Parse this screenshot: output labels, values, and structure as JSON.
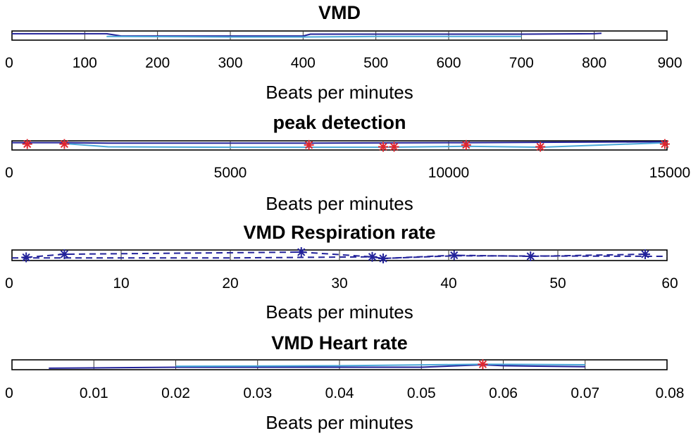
{
  "chart_data": [
    {
      "type": "line",
      "title": "VMD",
      "xlabel": "Beats per minutes",
      "xlim": [
        0,
        900
      ],
      "xticks": [
        "0",
        "100",
        "200",
        "300",
        "400",
        "500",
        "600",
        "700",
        "800",
        "900"
      ],
      "ylim": [
        -1,
        1
      ],
      "grid": true,
      "series": [
        {
          "color": "#22229a",
          "style": "solid",
          "marker": "none",
          "x": [
            0,
            130,
            150,
            400,
            410,
            700,
            800,
            810
          ],
          "y": [
            0.4,
            0.4,
            -0.1,
            -0.1,
            0.3,
            0.3,
            0.4,
            0.5
          ]
        },
        {
          "color": "#4aa8d8",
          "style": "solid",
          "marker": "none",
          "x": [
            130,
            300,
            400,
            500,
            700
          ],
          "y": [
            -0.2,
            -0.3,
            -0.3,
            -0.2,
            -0.2
          ]
        }
      ]
    },
    {
      "type": "line",
      "title": "peak detection",
      "xlabel": "Beats per minutes",
      "xlim": [
        0,
        15000
      ],
      "xticks": [
        "0",
        "5000",
        "10000",
        "15000"
      ],
      "ylim": [
        -1,
        1
      ],
      "grid": true,
      "series": [
        {
          "color": "#22229a",
          "style": "solid",
          "marker": "none",
          "x": [
            0,
            1200,
            2200,
            6800,
            10400,
            15000
          ],
          "y": [
            0.6,
            0.6,
            0.5,
            0.5,
            0.6,
            0.8
          ]
        },
        {
          "color": "#4aa8d8",
          "style": "solid",
          "marker": "none",
          "x": [
            1200,
            2200,
            5000,
            8500,
            10400,
            12100,
            15000
          ],
          "y": [
            0.4,
            -0.3,
            -0.4,
            -0.4,
            -0.2,
            -0.4,
            0.6
          ]
        },
        {
          "color": "#e0262f",
          "style": "none",
          "marker": "*",
          "x": [
            350,
            1200,
            6800,
            8500,
            8750,
            10400,
            12100,
            14950
          ],
          "y": [
            0.3,
            0.3,
            0.1,
            -0.3,
            -0.3,
            0.1,
            -0.3,
            0.3
          ]
        }
      ]
    },
    {
      "type": "line",
      "title": "VMD Respiration rate",
      "xlabel": "Beats per minutes",
      "xlim": [
        0,
        60
      ],
      "xticks": [
        "0",
        "10",
        "20",
        "30",
        "40",
        "50",
        "60"
      ],
      "ylim": [
        -1,
        1
      ],
      "grid": true,
      "series": [
        {
          "color": "#22229a",
          "style": "dashed",
          "marker": "*",
          "x": [
            1.3,
            4.8,
            26.5,
            33,
            34,
            40.5,
            47.5,
            58
          ],
          "y": [
            -0.4,
            0.2,
            0.6,
            -0.3,
            -0.6,
            0.0,
            -0.2,
            0.2
          ]
        },
        {
          "color": "#22229a",
          "style": "dashed",
          "marker": "none",
          "x": [
            0,
            20,
            33,
            34,
            40.5,
            60
          ],
          "y": [
            -0.5,
            -0.5,
            -0.3,
            -0.6,
            -0.1,
            -0.2
          ]
        }
      ]
    },
    {
      "type": "line",
      "title": "VMD Heart rate",
      "xlabel": "Beats per minutes",
      "xlim": [
        0,
        0.08
      ],
      "xticks": [
        "0",
        "0.01",
        "0.02",
        "0.03",
        "0.04",
        "0.05",
        "0.06",
        "0.07",
        "0.08"
      ],
      "ylim": [
        -1,
        1
      ],
      "grid": true,
      "series": [
        {
          "color": "#22229a",
          "style": "solid",
          "marker": "none",
          "x": [
            0.0045,
            0.02,
            0.05,
            0.0575,
            0.06,
            0.07
          ],
          "y": [
            -0.7,
            -0.5,
            -0.5,
            0.0,
            -0.2,
            -0.4
          ]
        },
        {
          "color": "#4aa8d8",
          "style": "solid",
          "marker": "none",
          "x": [
            0.02,
            0.04,
            0.0575,
            0.07
          ],
          "y": [
            -0.3,
            -0.2,
            0.1,
            0.0
          ]
        },
        {
          "color": "#e0262f",
          "style": "none",
          "marker": "*",
          "x": [
            0.0575
          ],
          "y": [
            0.1
          ]
        }
      ]
    }
  ]
}
